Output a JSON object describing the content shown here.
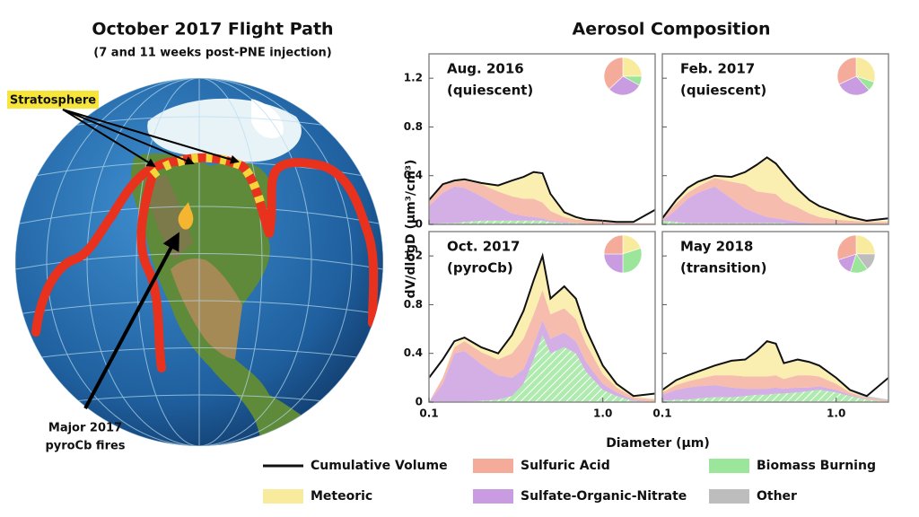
{
  "map": {
    "title": "October 2017 Flight Path",
    "subtitle": "(7 and 11 weeks post-PNE injection)",
    "stratosphere_label": "Stratosphere",
    "fires_label": [
      "Major 2017",
      "pyroCb fires"
    ]
  },
  "figure": {
    "title": "Aerosol Composition",
    "x_label": "Diameter (μm)",
    "y_label": "dV/dlogD (μm³/cm³)"
  },
  "chart_data": [
    {
      "type": "area",
      "stacked": true,
      "title": "Aug. 2016",
      "subtitle": "(quiescent)",
      "xscale": "log",
      "x": [
        0.1,
        0.12,
        0.14,
        0.16,
        0.2,
        0.25,
        0.3,
        0.35,
        0.4,
        0.45,
        0.5,
        0.6,
        0.7,
        0.8,
        1.0,
        1.2,
        1.5,
        2.0
      ],
      "xlim": [
        0.1,
        2.0
      ],
      "xticks": [
        0.1,
        {
          "value": 1,
          "label": "1.0"
        }
      ],
      "ylim": [
        0,
        1.4
      ],
      "yticks": [
        0,
        0.4,
        0.8,
        1.2
      ],
      "series": [
        {
          "name": "Cumulative Volume",
          "type": "line",
          "color": "#111111",
          "values": [
            0.2,
            0.33,
            0.36,
            0.37,
            0.34,
            0.32,
            0.36,
            0.39,
            0.43,
            0.42,
            0.25,
            0.1,
            0.06,
            0.04,
            0.03,
            0.02,
            0.02,
            0.12
          ]
        },
        {
          "name": "Biomass Burning",
          "type": "area",
          "hatch": true,
          "color": "#9be69a",
          "share": 8,
          "values": [
            0,
            0.01,
            0.01,
            0.02,
            0.03,
            0.03,
            0.03,
            0.03,
            0.03,
            0.03,
            0.02,
            0.01,
            0.01,
            0,
            0,
            0,
            0,
            0
          ]
        },
        {
          "name": "Sulfate-Organic-Nitrate",
          "type": "area",
          "color": "#c99be0",
          "share": 30,
          "values": [
            0.15,
            0.25,
            0.3,
            0.28,
            0.2,
            0.12,
            0.06,
            0.04,
            0.03,
            0.02,
            0.01,
            0.01,
            0,
            0,
            0,
            0,
            0,
            0
          ]
        },
        {
          "name": "Sulfuric Acid",
          "type": "area",
          "color": "#f4ab9a",
          "share": 37,
          "values": [
            0.05,
            0.08,
            0.04,
            0.06,
            0.1,
            0.12,
            0.14,
            0.14,
            0.15,
            0.13,
            0.08,
            0.04,
            0.03,
            0.03,
            0.02,
            0.02,
            0.01,
            0.01
          ]
        },
        {
          "name": "Meteoric",
          "type": "area",
          "color": "#f9eb9e",
          "share": 25,
          "values": [
            0,
            0,
            0.01,
            0.01,
            0.01,
            0.05,
            0.12,
            0.17,
            0.22,
            0.22,
            0.12,
            0.04,
            0.02,
            0.01,
            0,
            0,
            0,
            0
          ]
        },
        {
          "name": "Other",
          "type": "area",
          "color": "#bdbdbd",
          "share": 0,
          "values": [
            0,
            0,
            0,
            0,
            0,
            0,
            0,
            0,
            0,
            0,
            0,
            0,
            0,
            0,
            0,
            0,
            0,
            0
          ]
        }
      ]
    },
    {
      "type": "area",
      "stacked": true,
      "title": "Feb. 2017",
      "subtitle": "(quiescent)",
      "xscale": "log",
      "x": [
        0.1,
        0.12,
        0.14,
        0.16,
        0.2,
        0.25,
        0.3,
        0.35,
        0.4,
        0.45,
        0.5,
        0.6,
        0.7,
        0.8,
        1.0,
        1.2,
        1.5,
        2.0
      ],
      "xlim": [
        0.1,
        2.0
      ],
      "xticks": [
        0.1,
        {
          "value": 1,
          "label": "1.0"
        }
      ],
      "ylim": [
        0,
        1.4
      ],
      "yticks": [
        0,
        0.4,
        0.8,
        1.2
      ],
      "series": [
        {
          "name": "Cumulative Volume",
          "type": "line",
          "color": "#111111",
          "values": [
            0.05,
            0.2,
            0.3,
            0.35,
            0.4,
            0.39,
            0.43,
            0.49,
            0.55,
            0.5,
            0.42,
            0.29,
            0.2,
            0.15,
            0.1,
            0.06,
            0.03,
            0.05
          ]
        },
        {
          "name": "Biomass Burning",
          "type": "area",
          "hatch": true,
          "color": "#9be69a",
          "share": 8,
          "values": [
            0.03,
            0.02,
            0.01,
            0.01,
            0.01,
            0.01,
            0.01,
            0.01,
            0.01,
            0.01,
            0.01,
            0,
            0,
            0,
            0,
            0,
            0,
            0
          ]
        },
        {
          "name": "Sulfate-Organic-Nitrate",
          "type": "area",
          "color": "#c99be0",
          "share": 30,
          "values": [
            0,
            0.1,
            0.2,
            0.25,
            0.3,
            0.2,
            0.12,
            0.08,
            0.05,
            0.04,
            0.03,
            0.02,
            0.01,
            0,
            0,
            0,
            0,
            0
          ]
        },
        {
          "name": "Sulfuric Acid",
          "type": "area",
          "color": "#f4ab9a",
          "share": 32,
          "values": [
            0.02,
            0.05,
            0.05,
            0.05,
            0.07,
            0.14,
            0.2,
            0.18,
            0.2,
            0.2,
            0.15,
            0.12,
            0.08,
            0.06,
            0.04,
            0.03,
            0.02,
            0.02
          ]
        },
        {
          "name": "Meteoric",
          "type": "area",
          "color": "#f9eb9e",
          "share": 30,
          "values": [
            0,
            0.03,
            0.04,
            0.04,
            0.02,
            0.04,
            0.1,
            0.22,
            0.29,
            0.25,
            0.23,
            0.15,
            0.11,
            0.09,
            0.06,
            0.03,
            0.01,
            0.01
          ]
        },
        {
          "name": "Other",
          "type": "area",
          "color": "#bdbdbd",
          "share": 0,
          "values": [
            0,
            0,
            0,
            0,
            0,
            0,
            0,
            0,
            0,
            0,
            0,
            0,
            0,
            0,
            0,
            0,
            0,
            0
          ]
        }
      ]
    },
    {
      "type": "area",
      "stacked": true,
      "title": "Oct. 2017",
      "subtitle": "(pyroCb)",
      "xscale": "log",
      "x": [
        0.1,
        0.12,
        0.14,
        0.16,
        0.2,
        0.25,
        0.3,
        0.35,
        0.4,
        0.45,
        0.5,
        0.6,
        0.7,
        0.8,
        1.0,
        1.2,
        1.5,
        2.0
      ],
      "xlim": [
        0.1,
        2.0
      ],
      "xticks": [
        0.1,
        {
          "value": 1,
          "label": "1.0"
        }
      ],
      "ylim": [
        0,
        1.4
      ],
      "yticks": [
        0,
        0.4,
        0.8,
        1.2
      ],
      "series": [
        {
          "name": "Cumulative Volume",
          "type": "line",
          "color": "#111111",
          "values": [
            0.2,
            0.35,
            0.5,
            0.53,
            0.45,
            0.4,
            0.55,
            0.75,
            1.0,
            1.2,
            0.85,
            0.95,
            0.85,
            0.6,
            0.3,
            0.15,
            0.05,
            0.07
          ]
        },
        {
          "name": "Biomass Burning",
          "type": "area",
          "hatch": true,
          "color": "#9be69a",
          "share": 30,
          "values": [
            0,
            0,
            0,
            0,
            0.01,
            0.02,
            0.05,
            0.15,
            0.35,
            0.55,
            0.4,
            0.45,
            0.4,
            0.25,
            0.1,
            0.05,
            0.01,
            0
          ]
        },
        {
          "name": "Sulfate-Organic-Nitrate",
          "type": "area",
          "color": "#c99be0",
          "share": 25,
          "values": [
            0,
            0.15,
            0.4,
            0.42,
            0.3,
            0.2,
            0.15,
            0.12,
            0.12,
            0.12,
            0.12,
            0.12,
            0.1,
            0.08,
            0.05,
            0.03,
            0.01,
            0
          ]
        },
        {
          "name": "Sulfuric Acid",
          "type": "area",
          "color": "#f4ab9a",
          "share": 25,
          "values": [
            0,
            0.05,
            0.05,
            0.08,
            0.1,
            0.13,
            0.2,
            0.25,
            0.25,
            0.25,
            0.2,
            0.2,
            0.18,
            0.15,
            0.08,
            0.04,
            0.02,
            0.02
          ]
        },
        {
          "name": "Meteoric",
          "type": "area",
          "color": "#f9eb9e",
          "share": 20,
          "values": [
            0,
            0,
            0.03,
            0.03,
            0.04,
            0.05,
            0.15,
            0.23,
            0.28,
            0.28,
            0.13,
            0.18,
            0.17,
            0.12,
            0.07,
            0.03,
            0.01,
            0.01
          ]
        },
        {
          "name": "Other",
          "type": "area",
          "color": "#bdbdbd",
          "share": 0,
          "values": [
            0,
            0,
            0,
            0,
            0,
            0,
            0,
            0,
            0,
            0,
            0,
            0,
            0,
            0,
            0,
            0,
            0,
            0
          ]
        }
      ]
    },
    {
      "type": "area",
      "stacked": true,
      "title": "May 2018",
      "subtitle": "(transition)",
      "xscale": "log",
      "x": [
        0.1,
        0.12,
        0.14,
        0.16,
        0.2,
        0.25,
        0.3,
        0.35,
        0.4,
        0.45,
        0.5,
        0.6,
        0.7,
        0.8,
        1.0,
        1.2,
        1.5,
        2.0
      ],
      "xlim": [
        0.1,
        2.0
      ],
      "xticks": [
        0.1,
        {
          "value": 1,
          "label": "1.0"
        }
      ],
      "ylim": [
        0,
        1.4
      ],
      "yticks": [
        0,
        0.4,
        0.8,
        1.2
      ],
      "series": [
        {
          "name": "Cumulative Volume",
          "type": "line",
          "color": "#111111",
          "values": [
            0.1,
            0.18,
            0.22,
            0.25,
            0.3,
            0.34,
            0.35,
            0.42,
            0.5,
            0.48,
            0.32,
            0.35,
            0.33,
            0.3,
            0.2,
            0.1,
            0.05,
            0.2
          ]
        },
        {
          "name": "Biomass Burning",
          "type": "area",
          "hatch": true,
          "color": "#9be69a",
          "share": 15,
          "values": [
            0.01,
            0.02,
            0.02,
            0.03,
            0.04,
            0.04,
            0.05,
            0.06,
            0.06,
            0.07,
            0.07,
            0.08,
            0.09,
            0.1,
            0.08,
            0.05,
            0.02,
            0
          ]
        },
        {
          "name": "Sulfate-Organic-Nitrate",
          "type": "area",
          "color": "#c99be0",
          "share": 15,
          "values": [
            0.05,
            0.08,
            0.1,
            0.1,
            0.1,
            0.08,
            0.06,
            0.05,
            0.05,
            0.05,
            0.04,
            0.04,
            0.03,
            0.03,
            0.02,
            0.01,
            0,
            0
          ]
        },
        {
          "name": "Sulfuric Acid",
          "type": "area",
          "color": "#f4ab9a",
          "share": 30,
          "values": [
            0.02,
            0.04,
            0.05,
            0.06,
            0.08,
            0.1,
            0.1,
            0.1,
            0.1,
            0.1,
            0.08,
            0.1,
            0.1,
            0.08,
            0.05,
            0.02,
            0.01,
            0.01
          ]
        },
        {
          "name": "Meteoric",
          "type": "area",
          "color": "#f9eb9e",
          "share": 25,
          "values": [
            0.02,
            0.03,
            0.05,
            0.06,
            0.08,
            0.12,
            0.13,
            0.2,
            0.28,
            0.25,
            0.12,
            0.12,
            0.1,
            0.08,
            0.04,
            0.01,
            0,
            0
          ]
        },
        {
          "name": "Other",
          "type": "area",
          "color": "#bdbdbd",
          "share": 15,
          "values": [
            0,
            0,
            0,
            0,
            0,
            0,
            0,
            0,
            0,
            0,
            0.01,
            0.01,
            0.01,
            0.01,
            0.01,
            0.01,
            0.02,
            0.01
          ]
        }
      ]
    }
  ]
}
